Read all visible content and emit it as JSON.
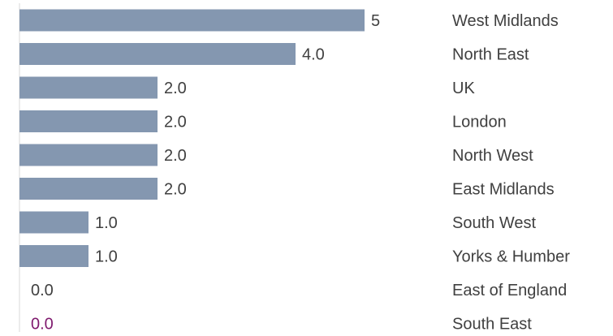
{
  "chart_data": {
    "type": "bar",
    "orientation": "horizontal",
    "categories": [
      "West Midlands",
      "North East",
      "UK",
      "London",
      "North West",
      "East Midlands",
      "South West",
      "Yorks & Humber",
      "East of England",
      "South East"
    ],
    "values": [
      5,
      4.0,
      2.0,
      2.0,
      2.0,
      2.0,
      1.0,
      1.0,
      0.0,
      0.0
    ],
    "value_labels": [
      "5",
      "4.0",
      "2.0",
      "2.0",
      "2.0",
      "2.0",
      "1.0",
      "1.0",
      "0.0",
      "0.0"
    ],
    "xlim": [
      0,
      5
    ],
    "grid": false,
    "legend": "none",
    "title": "",
    "xlabel": "",
    "ylabel": "",
    "category_label_position": "right",
    "colors": {
      "bar": "#8497b0",
      "axis": "#d9d9d9",
      "text": "#404040",
      "highlight_value": "#7f1a6e"
    },
    "highlight_value_index": 9
  }
}
